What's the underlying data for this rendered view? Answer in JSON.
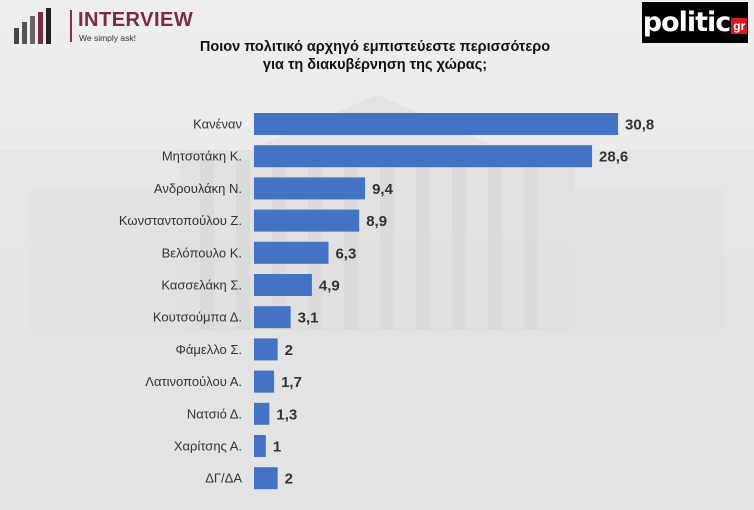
{
  "header": {
    "logo_left_name": "INTERVIEW",
    "logo_left_tagline": "We simply ask!",
    "logo_right_word": "politic",
    "logo_right_tld": "gr",
    "title_line1": "Ποιον πολιτικό αρχηγό εμπιστεύεστε περισσότερο",
    "title_line2": "για τη διακυβέρνηση της χώρας;"
  },
  "colors": {
    "bar": "#4472c4",
    "brand_left": "#7a2a45",
    "brand_right_accent": "#d71920"
  },
  "chart_data": {
    "type": "bar",
    "orientation": "horizontal",
    "categories": [
      "Κανέναν",
      "Μητσοτάκη Κ.",
      "Ανδρουλάκη Ν.",
      "Κωνσταντοπούλου Ζ.",
      "Βελόπουλο Κ.",
      "Κασσελάκη Σ.",
      "Κουτσούμπα Δ.",
      "Φάμελλο Σ.",
      "Λατινοπούλου Α.",
      "Νατσιό Δ.",
      "Χαρίτσης Α.",
      "ΔΓ/ΔΑ"
    ],
    "values": [
      30.8,
      28.6,
      9.4,
      8.9,
      6.3,
      4.9,
      3.1,
      2,
      1.7,
      1.3,
      1,
      2
    ],
    "value_labels": [
      "30,8",
      "28,6",
      "9,4",
      "8,9",
      "6,3",
      "4,9",
      "3,1",
      "2",
      "1,7",
      "1,3",
      "1",
      "2"
    ],
    "title": "Ποιον πολιτικό αρχηγό εμπιστεύεστε περισσότερο για τη διακυβέρνηση της χώρας;",
    "xlim": [
      0,
      32
    ],
    "grid": false,
    "legend": "none"
  }
}
